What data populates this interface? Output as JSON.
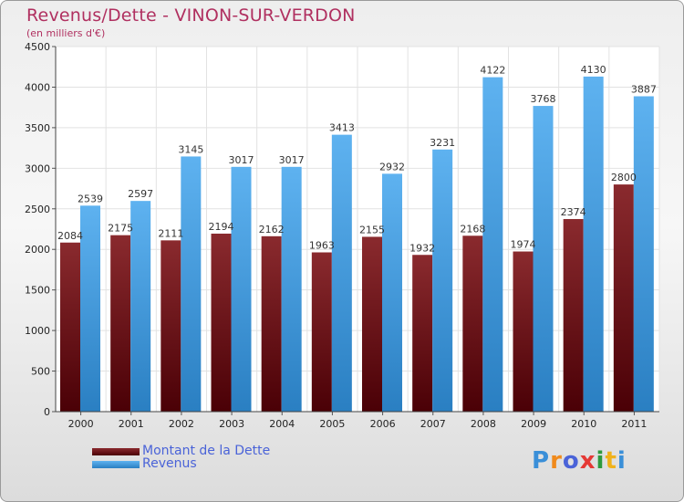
{
  "header": {
    "title": "Revenus/Dette - VINON-SUR-VERDON",
    "subtitle": "(en milliers d'€)"
  },
  "colors": {
    "debt": "#7a1a1e",
    "revenue": "#4aa3e6",
    "title": "#b03060",
    "legend_text": "#4a63d8"
  },
  "chart_data": {
    "type": "bar",
    "title": "Revenus/Dette - VINON-SUR-VERDON",
    "ylabel": "(en milliers d'€)",
    "xlabel": "",
    "categories": [
      "2000",
      "2001",
      "2002",
      "2003",
      "2004",
      "2005",
      "2006",
      "2007",
      "2008",
      "2009",
      "2010",
      "2011"
    ],
    "series": [
      {
        "name": "Montant de la Dette",
        "values": [
          2084,
          2175,
          2111,
          2194,
          2162,
          1963,
          2155,
          1932,
          2168,
          1974,
          2374,
          2800
        ]
      },
      {
        "name": "Revenus",
        "values": [
          2539,
          2597,
          3145,
          3017,
          3017,
          3413,
          2932,
          3231,
          4122,
          3768,
          4130,
          3887
        ]
      }
    ],
    "ylim": [
      0,
      4500
    ],
    "yticks": [
      0,
      500,
      1000,
      1500,
      2000,
      2500,
      3000,
      3500,
      4000,
      4500
    ],
    "grid": true,
    "legend_position": "bottom-left"
  },
  "legend": {
    "items": [
      {
        "label": "Montant de la Dette"
      },
      {
        "label": "Revenus"
      }
    ]
  },
  "logo": {
    "text": "Proxiti",
    "letters": [
      "P",
      "r",
      "o",
      "x",
      "i",
      "t",
      "i"
    ],
    "letter_colors": [
      "#3a8fd8",
      "#f08a1c",
      "#4a63d8",
      "#e53935",
      "#2e9a3e",
      "#f0b21c",
      "#3a8fd8"
    ]
  }
}
